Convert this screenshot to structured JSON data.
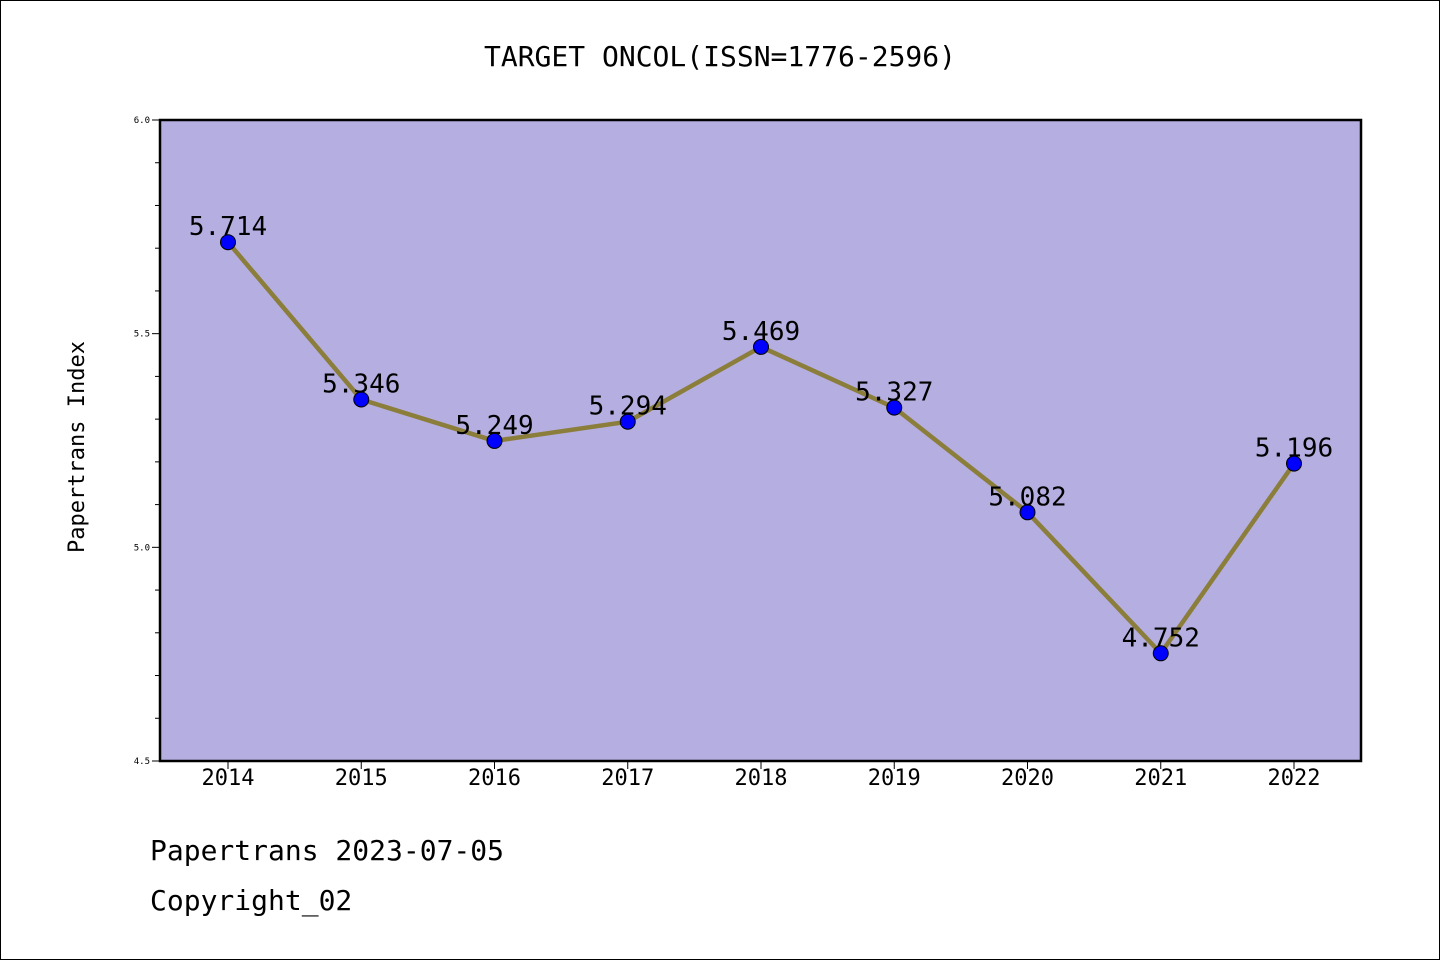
{
  "chart_data": {
    "type": "line",
    "title": "TARGET ONCOL(ISSN=1776-2596)",
    "xlabel": "",
    "ylabel": "Papertrans Index",
    "categories": [
      "2014",
      "2015",
      "2016",
      "2017",
      "2018",
      "2019",
      "2020",
      "2021",
      "2022"
    ],
    "series": [
      {
        "values": [
          5.714,
          5.346,
          5.249,
          5.294,
          5.469,
          5.327,
          5.082,
          4.752,
          5.196
        ]
      }
    ],
    "data_labels": [
      "5.714",
      "5.346",
      "5.249",
      "5.294",
      "5.469",
      "5.327",
      "5.082",
      "4.752",
      "5.196"
    ],
    "ylim": [
      4.5,
      6.0
    ],
    "yticks": [
      "4.5",
      "5.0",
      "5.5",
      "6.0"
    ],
    "grid": false,
    "legend": "none",
    "colors": {
      "plot_background": "#b5aee1",
      "line": "#8b7d3a",
      "marker": "#0000ff"
    }
  },
  "footer": {
    "line1": "Papertrans 2023-07-05",
    "line2": "Copyright_02"
  }
}
